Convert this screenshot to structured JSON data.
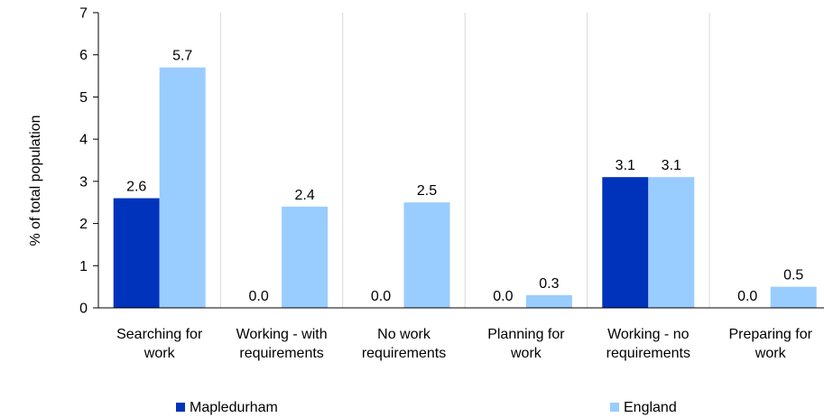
{
  "chart_data": {
    "type": "bar",
    "ylabel": "% of total population",
    "ylim": [
      0,
      7
    ],
    "yticks": [
      0,
      1,
      2,
      3,
      4,
      5,
      6,
      7
    ],
    "grid": "vertical-category-separators",
    "legend_position": "bottom",
    "categories": [
      [
        "Searching for",
        "work"
      ],
      [
        "Working - with",
        "requirements"
      ],
      [
        "No work",
        "requirements"
      ],
      [
        "Planning for",
        "work"
      ],
      [
        "Working - no",
        "requirements"
      ],
      [
        "Preparing for",
        "work"
      ]
    ],
    "series": [
      {
        "name": "Mapledurham",
        "color": "#0033bb",
        "values": [
          2.6,
          0.0,
          0.0,
          0.0,
          3.1,
          0.0
        ],
        "labels": [
          "2.6",
          "0.0",
          "0.0",
          "0.0",
          "3.1",
          "0.0"
        ]
      },
      {
        "name": "England",
        "color": "#99ccff",
        "values": [
          5.7,
          2.4,
          2.5,
          0.3,
          3.1,
          0.5
        ],
        "labels": [
          "5.7",
          "2.4",
          "2.5",
          "0.3",
          "3.1",
          "0.5"
        ]
      }
    ]
  }
}
